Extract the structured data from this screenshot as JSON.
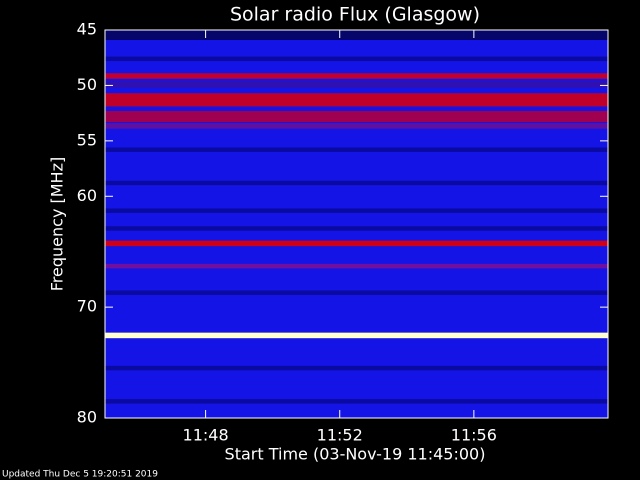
{
  "chart_data": {
    "type": "spectrogram",
    "title": "Solar radio Flux (Glasgow)",
    "x_label": "Start Time (03-Nov-19 11:45:00)",
    "y_label": "Frequency [MHz]",
    "footer": "Updated Thu Dec  5 19:20:51 2019",
    "background_color": "#1414e6",
    "xlim": [
      0,
      15
    ],
    "xticks": [
      {
        "value": 3,
        "label": "11:48"
      },
      {
        "value": 7,
        "label": "11:52"
      },
      {
        "value": 11,
        "label": "11:56"
      }
    ],
    "ylim": [
      45,
      80
    ],
    "yticks": [
      45,
      50,
      55,
      60,
      70,
      80
    ],
    "y_inverted": true,
    "bands": [
      {
        "range": [
          45,
          45.9
        ],
        "color": "#05056a"
      },
      {
        "range": [
          47.4,
          47.8
        ],
        "color": "#0a0aa0"
      },
      {
        "range": [
          48.9,
          49.4
        ],
        "color": "#c00030"
      },
      {
        "range": [
          49.6,
          50.2
        ],
        "color": "#3010b0"
      },
      {
        "range": [
          50.7,
          51.9
        ],
        "color": "#c00028"
      },
      {
        "range": [
          52.3,
          53.3
        ],
        "color": "#a00050"
      },
      {
        "range": [
          53.4,
          53.9
        ],
        "color": "#6010a0"
      },
      {
        "range": [
          55.6,
          56.0
        ],
        "color": "#0a0aa0"
      },
      {
        "range": [
          58.6,
          59.0
        ],
        "color": "#0a0aa0"
      },
      {
        "range": [
          61.1,
          61.5
        ],
        "color": "#0a0aa0"
      },
      {
        "range": [
          62.7,
          63.1
        ],
        "color": "#0a0aa0"
      },
      {
        "range": [
          64.0,
          64.5
        ],
        "color": "#d00018"
      },
      {
        "range": [
          66.1,
          66.5
        ],
        "color": "#7010a0"
      },
      {
        "range": [
          68.5,
          68.9
        ],
        "color": "#0a0aa0"
      },
      {
        "range": [
          72.3,
          72.8
        ],
        "color": "#ffffd0"
      },
      {
        "range": [
          75.3,
          75.7
        ],
        "color": "#0a0aa0"
      },
      {
        "range": [
          78.3,
          78.7
        ],
        "color": "#0a0aa0"
      }
    ]
  }
}
